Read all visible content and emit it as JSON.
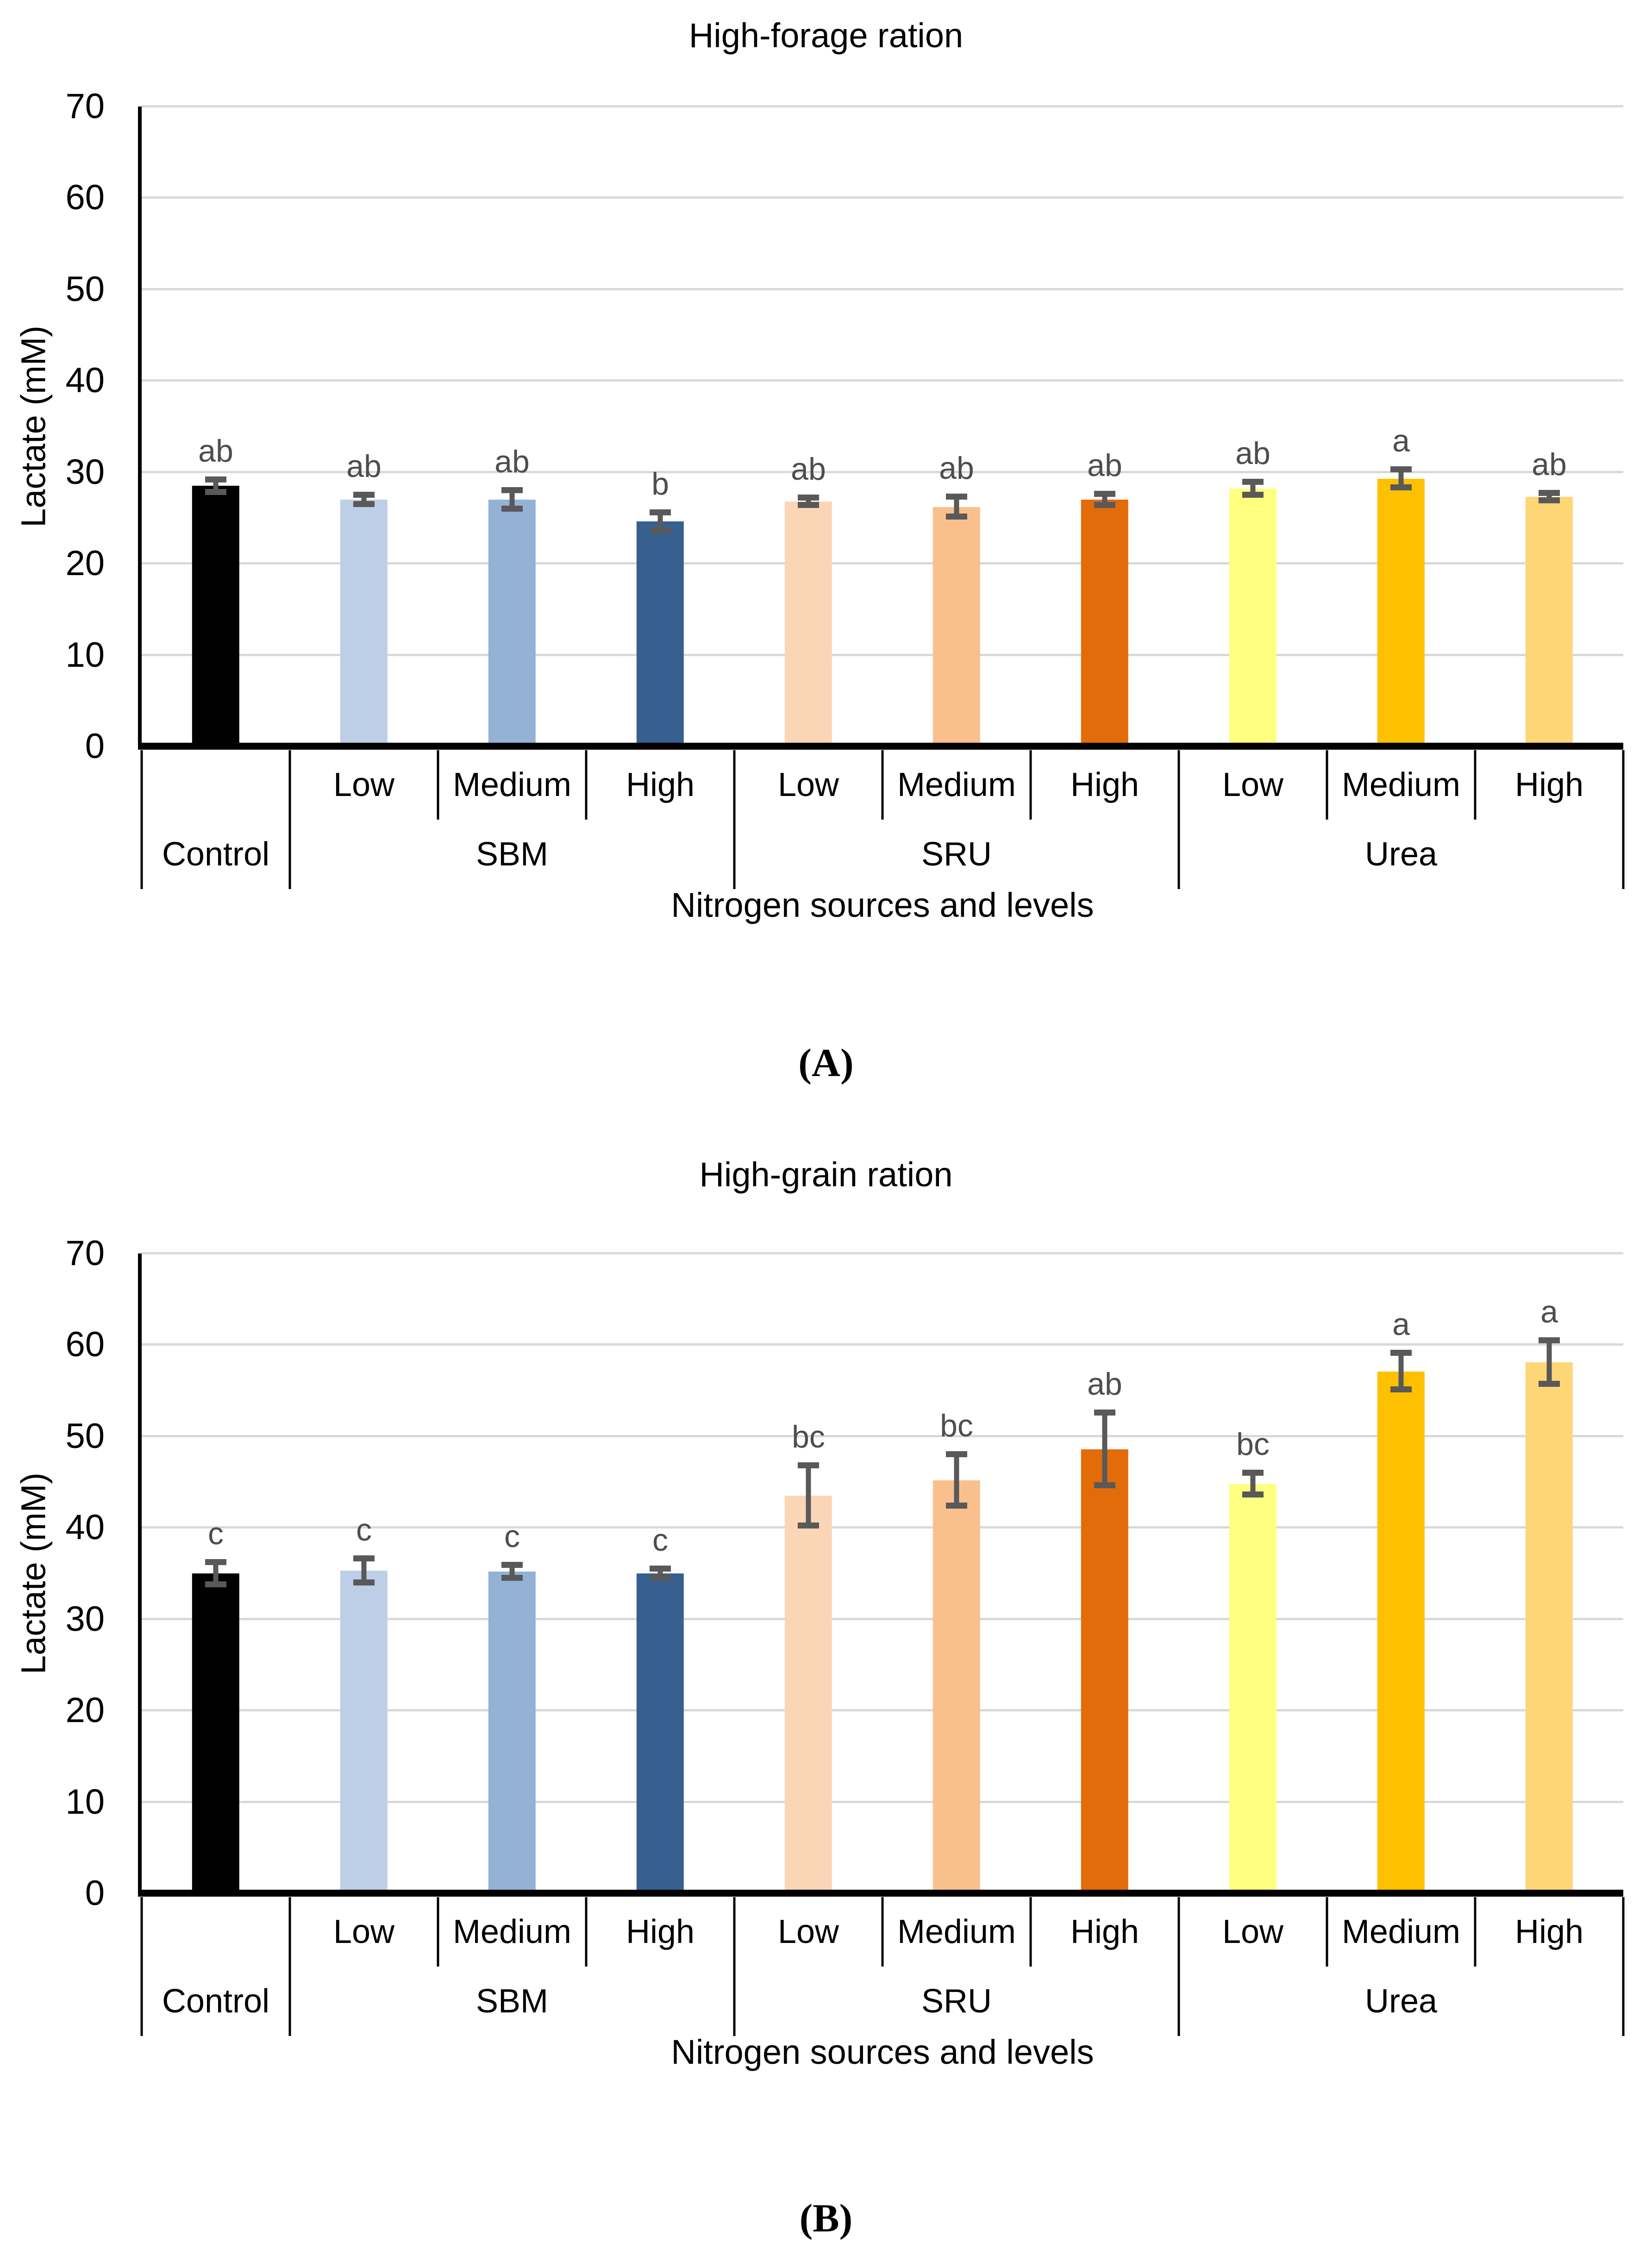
{
  "styles": {
    "gridline_color": "#D9D9D9",
    "axis_color": "#000000",
    "error_bar_color": "#595959",
    "letter_color": "#4D4D4D",
    "background": "#FFFFFF"
  },
  "chart_data": [
    {
      "type": "bar",
      "panel_label": "(A)",
      "title": "High-forage ration",
      "xlabel": "Nitrogen sources and levels",
      "ylabel": "Lactate (mM)",
      "ylim": [
        0,
        70
      ],
      "yticks": [
        0,
        10,
        20,
        30,
        40,
        50,
        60,
        70
      ],
      "grid": true,
      "legend": false,
      "groups": [
        {
          "label": "Control",
          "span": 1
        },
        {
          "label": "SBM",
          "span": 3
        },
        {
          "label": "SRU",
          "span": 3
        },
        {
          "label": "Urea",
          "span": 3
        }
      ],
      "bars": [
        {
          "group": "Control",
          "level": "",
          "value": 28.5,
          "error": 0.7,
          "letter": "ab",
          "color": "#000000"
        },
        {
          "group": "SBM",
          "level": "Low",
          "value": 27.0,
          "error": 0.5,
          "letter": "ab",
          "color": "#BCCFE6"
        },
        {
          "group": "SBM",
          "level": "Medium",
          "value": 27.0,
          "error": 1.0,
          "letter": "ab",
          "color": "#93B2D6"
        },
        {
          "group": "SBM",
          "level": "High",
          "value": 24.6,
          "error": 1.0,
          "letter": "b",
          "color": "#36608F"
        },
        {
          "group": "SRU",
          "level": "Low",
          "value": 26.8,
          "error": 0.4,
          "letter": "ab",
          "color": "#FBD6B6"
        },
        {
          "group": "SRU",
          "level": "Medium",
          "value": 26.2,
          "error": 1.1,
          "letter": "ab",
          "color": "#F9C08E"
        },
        {
          "group": "SRU",
          "level": "High",
          "value": 27.0,
          "error": 0.6,
          "letter": "ab",
          "color": "#E26B0A"
        },
        {
          "group": "Urea",
          "level": "Low",
          "value": 28.2,
          "error": 0.7,
          "letter": "ab",
          "color": "#FFFF80"
        },
        {
          "group": "Urea",
          "level": "Medium",
          "value": 29.3,
          "error": 1.0,
          "letter": "a",
          "color": "#FFC000"
        },
        {
          "group": "Urea",
          "level": "High",
          "value": 27.3,
          "error": 0.4,
          "letter": "ab",
          "color": "#FFD675"
        }
      ]
    },
    {
      "type": "bar",
      "panel_label": "(B)",
      "title": "High-grain ration",
      "xlabel": "Nitrogen sources and levels",
      "ylabel": "Lactate (mM)",
      "ylim": [
        0,
        70
      ],
      "yticks": [
        0,
        10,
        20,
        30,
        40,
        50,
        60,
        70
      ],
      "grid": true,
      "legend": false,
      "groups": [
        {
          "label": "Control",
          "span": 1
        },
        {
          "label": "SBM",
          "span": 3
        },
        {
          "label": "SRU",
          "span": 3
        },
        {
          "label": "Urea",
          "span": 3
        }
      ],
      "bars": [
        {
          "group": "Control",
          "level": "",
          "value": 35.0,
          "error": 1.2,
          "letter": "c",
          "color": "#000000"
        },
        {
          "group": "SBM",
          "level": "Low",
          "value": 35.3,
          "error": 1.3,
          "letter": "c",
          "color": "#BCCFE6"
        },
        {
          "group": "SBM",
          "level": "Medium",
          "value": 35.2,
          "error": 0.7,
          "letter": "c",
          "color": "#93B2D6"
        },
        {
          "group": "SBM",
          "level": "High",
          "value": 35.0,
          "error": 0.5,
          "letter": "c",
          "color": "#36608F"
        },
        {
          "group": "SRU",
          "level": "Low",
          "value": 43.5,
          "error": 3.3,
          "letter": "bc",
          "color": "#FBD6B6"
        },
        {
          "group": "SRU",
          "level": "Medium",
          "value": 45.2,
          "error": 2.8,
          "letter": "bc",
          "color": "#F9C08E"
        },
        {
          "group": "SRU",
          "level": "High",
          "value": 48.6,
          "error": 4.0,
          "letter": "ab",
          "color": "#E26B0A"
        },
        {
          "group": "Urea",
          "level": "Low",
          "value": 44.8,
          "error": 1.2,
          "letter": "bc",
          "color": "#FFFF80"
        },
        {
          "group": "Urea",
          "level": "Medium",
          "value": 57.1,
          "error": 2.0,
          "letter": "a",
          "color": "#FFC000"
        },
        {
          "group": "Urea",
          "level": "High",
          "value": 58.1,
          "error": 2.4,
          "letter": "a",
          "color": "#FFD675"
        }
      ]
    }
  ]
}
